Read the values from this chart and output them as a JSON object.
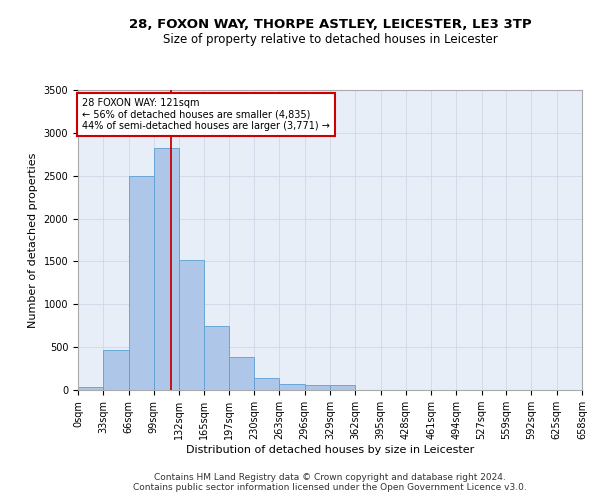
{
  "title1": "28, FOXON WAY, THORPE ASTLEY, LEICESTER, LE3 3TP",
  "title2": "Size of property relative to detached houses in Leicester",
  "xlabel": "Distribution of detached houses by size in Leicester",
  "ylabel": "Number of detached properties",
  "footer1": "Contains HM Land Registry data © Crown copyright and database right 2024.",
  "footer2": "Contains public sector information licensed under the Open Government Licence v3.0.",
  "annotation_line1": "28 FOXON WAY: 121sqm",
  "annotation_line2": "← 56% of detached houses are smaller (4,835)",
  "annotation_line3": "44% of semi-detached houses are larger (3,771) →",
  "property_size": 121,
  "bin_edges": [
    0,
    33,
    66,
    99,
    132,
    165,
    197,
    230,
    263,
    296,
    329,
    362,
    395,
    428,
    461,
    494,
    527,
    559,
    592,
    625,
    658
  ],
  "bar_heights": [
    30,
    465,
    2500,
    2820,
    1520,
    745,
    390,
    145,
    75,
    55,
    55,
    0,
    0,
    0,
    0,
    0,
    0,
    0,
    0,
    0
  ],
  "bar_color": "#aec6e8",
  "bar_edge_color": "#5a9fd4",
  "vline_color": "#cc0000",
  "vline_x": 121,
  "annotation_box_color": "#cc0000",
  "ylim": [
    0,
    3500
  ],
  "yticks": [
    0,
    500,
    1000,
    1500,
    2000,
    2500,
    3000,
    3500
  ],
  "grid_color": "#d0d8e8",
  "bg_color": "#e8eef8",
  "title1_fontsize": 9.5,
  "title2_fontsize": 8.5,
  "axis_label_fontsize": 8,
  "tick_fontsize": 7,
  "annotation_fontsize": 7,
  "footer_fontsize": 6.5
}
